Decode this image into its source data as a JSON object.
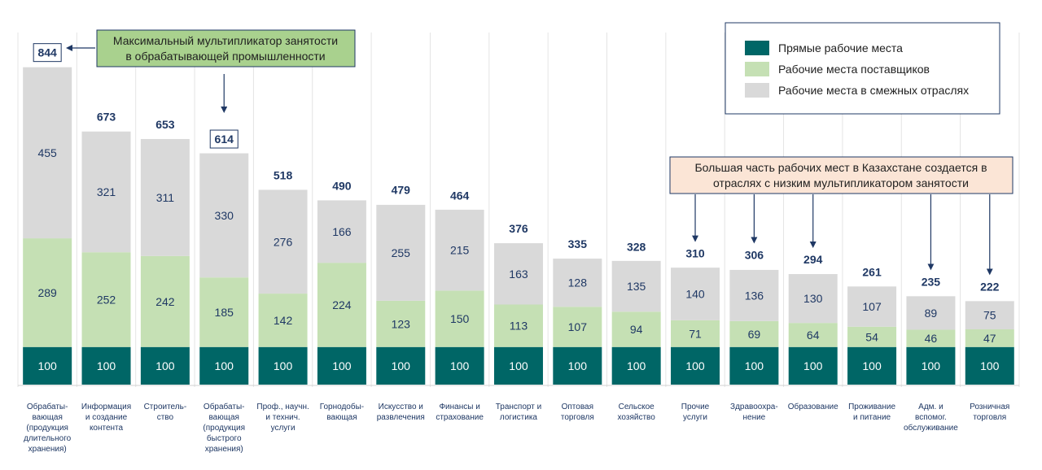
{
  "chart_data": {
    "type": "bar",
    "stacked": true,
    "categories": [
      [
        "Обрабаты-",
        "вающая",
        "(продукция",
        "длительного",
        "хранения)"
      ],
      [
        "Информация",
        "и создание",
        "контента"
      ],
      [
        "Строитель-",
        "ство"
      ],
      [
        "Обрабаты-",
        "вающая",
        "(продукция",
        "быстрого",
        "хранения)"
      ],
      [
        "Проф., научн.",
        "и технич.",
        "услуги"
      ],
      [
        "Горнодобы-",
        "вающая"
      ],
      [
        "Искусство и",
        "развлечения"
      ],
      [
        "Финансы и",
        "страхование"
      ],
      [
        "Транспорт и",
        "логистика"
      ],
      [
        "Оптовая",
        "торговля"
      ],
      [
        "Сельское",
        "хозяйство"
      ],
      [
        "Прочие",
        "услуги"
      ],
      [
        "Здравоохра-",
        "нение"
      ],
      [
        "Образование"
      ],
      [
        "Проживание",
        "и питание"
      ],
      [
        "Адм. и",
        "вспомог.",
        "обслуживание"
      ],
      [
        "Розничная",
        "торговля"
      ]
    ],
    "series": [
      {
        "name": "Прямые рабочие места",
        "color": "#006666",
        "values": [
          100,
          100,
          100,
          100,
          100,
          100,
          100,
          100,
          100,
          100,
          100,
          100,
          100,
          100,
          100,
          100,
          100
        ]
      },
      {
        "name": "Рабочие места поставщиков",
        "color": "#c5e0b4",
        "values": [
          289,
          252,
          242,
          185,
          142,
          224,
          123,
          150,
          113,
          107,
          94,
          71,
          69,
          64,
          54,
          46,
          47
        ]
      },
      {
        "name": "Рабочие места в смежных отраслях",
        "color": "#d9d9d9",
        "values": [
          455,
          321,
          311,
          330,
          276,
          166,
          255,
          215,
          163,
          128,
          135,
          140,
          136,
          130,
          107,
          89,
          75
        ]
      }
    ],
    "totals": [
      844,
      673,
      653,
      614,
      518,
      490,
      479,
      464,
      376,
      335,
      328,
      310,
      306,
      294,
      261,
      235,
      222
    ],
    "boxed_totals": [
      0,
      3
    ],
    "ylim": [
      0,
      900
    ],
    "grid": false,
    "legend_position": "top-right",
    "annotations": [
      {
        "text_lines": [
          "Максимальный мультипликатор занятости",
          "в обрабатывающей промышленности"
        ],
        "fill": "#a9d18e",
        "targets": [
          0,
          3
        ]
      },
      {
        "text_lines": [
          "Большая часть рабочих мест в Казахстане создается в",
          "отраслях с низким мультипликатором  занятости"
        ],
        "fill": "#fbe5d6",
        "targets": [
          11,
          12,
          13,
          15,
          16
        ]
      }
    ]
  }
}
